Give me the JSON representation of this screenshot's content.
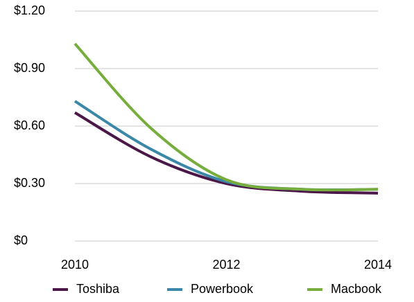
{
  "chart_data": {
    "type": "line",
    "x": [
      2010,
      2011,
      2012,
      2013,
      2014
    ],
    "series": [
      {
        "name": "Toshiba",
        "color": "#4b1748",
        "values": [
          0.67,
          0.44,
          0.3,
          0.26,
          0.25
        ]
      },
      {
        "name": "Powerbook",
        "color": "#3a87a8",
        "values": [
          0.73,
          0.48,
          0.31,
          0.27,
          0.27
        ]
      },
      {
        "name": "Macbook",
        "color": "#77ad3c",
        "values": [
          1.03,
          0.59,
          0.32,
          0.27,
          0.27
        ]
      }
    ],
    "xlim": [
      2010,
      2014
    ],
    "xticks": [
      2010,
      2012,
      2014
    ],
    "ylim": [
      0,
      1.2
    ],
    "yticks": [
      {
        "value": 0,
        "label": "$0"
      },
      {
        "value": 0.3,
        "label": "$0.30"
      },
      {
        "value": 0.6,
        "label": "$0.60"
      },
      {
        "value": 0.9,
        "label": "$0.90"
      },
      {
        "value": 1.2,
        "label": "$1.20"
      }
    ],
    "grid": true,
    "legend": "bottom"
  }
}
